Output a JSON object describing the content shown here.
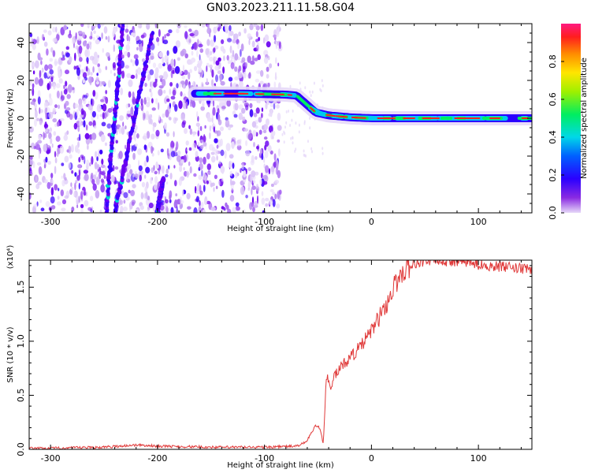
{
  "title": "GN03.2023.211.11.58.G04",
  "chart_data": [
    {
      "type": "heatmap",
      "xlabel": "Height of straight line (km)",
      "ylabel": "Frequency (Hz)",
      "xlim": [
        -320,
        150
      ],
      "ylim": [
        -50,
        50
      ],
      "x_ticks": [
        -300,
        -200,
        -100,
        0,
        100
      ],
      "y_ticks": [
        -40,
        -20,
        0,
        20,
        40
      ],
      "colorbar": {
        "label": "Normalized spectral amplitude",
        "range": [
          0,
          1
        ],
        "ticks": [
          0.0,
          0.2,
          0.4,
          0.6,
          0.8
        ]
      },
      "ridge": {
        "name": "main signal ridge",
        "points": [
          [
            -165,
            13
          ],
          [
            -120,
            13
          ],
          [
            -80,
            12.5
          ],
          [
            -70,
            12
          ],
          [
            -60,
            7
          ],
          [
            -52,
            3
          ],
          [
            -40,
            1.5
          ],
          [
            -20,
            0.5
          ],
          [
            0,
            0
          ],
          [
            50,
            0
          ],
          [
            100,
            0
          ],
          [
            150,
            0
          ]
        ]
      },
      "diagonal_tracks": [
        {
          "points": [
            [
              -248,
              -50
            ],
            [
              -232,
              50
            ]
          ]
        },
        {
          "points": [
            [
              -240,
              -50
            ],
            [
              -205,
              45
            ]
          ]
        },
        {
          "points": [
            [
              -200,
              -50
            ],
            [
              -195,
              -32
            ]
          ]
        }
      ],
      "noise_region_x": [
        -320,
        -85
      ],
      "grid": false
    },
    {
      "type": "line",
      "xlabel": "Height of straight line (km)",
      "ylabel": "SNR (10 * v/v)",
      "y_multiplier": "(x10⁴)",
      "xlim": [
        -320,
        150
      ],
      "ylim": [
        0,
        1.75
      ],
      "x_ticks": [
        -300,
        -200,
        -100,
        0,
        100
      ],
      "y_ticks": [
        0.0,
        0.5,
        1.0,
        1.5
      ],
      "series": [
        {
          "color": "#e03a3a",
          "x": [
            -320,
            -300,
            -250,
            -220,
            -200,
            -150,
            -100,
            -70,
            -62,
            -58,
            -52,
            -48,
            -45,
            -42,
            -40,
            -38,
            -35,
            -30,
            -25,
            -20,
            -15,
            -10,
            -5,
            0,
            5,
            10,
            15,
            20,
            25,
            30,
            35,
            40,
            50,
            60,
            70,
            80,
            90,
            100,
            110,
            120,
            130,
            140,
            150
          ],
          "y": [
            0.01,
            0.01,
            0.02,
            0.04,
            0.03,
            0.02,
            0.02,
            0.03,
            0.06,
            0.12,
            0.22,
            0.2,
            0.05,
            0.7,
            0.62,
            0.55,
            0.68,
            0.74,
            0.8,
            0.85,
            0.9,
            0.95,
            1.02,
            1.1,
            1.18,
            1.27,
            1.36,
            1.48,
            1.58,
            1.65,
            1.7,
            1.72,
            1.74,
            1.75,
            1.74,
            1.74,
            1.73,
            1.71,
            1.7,
            1.69,
            1.68,
            1.67,
            1.66
          ]
        }
      ],
      "grid": false
    }
  ]
}
